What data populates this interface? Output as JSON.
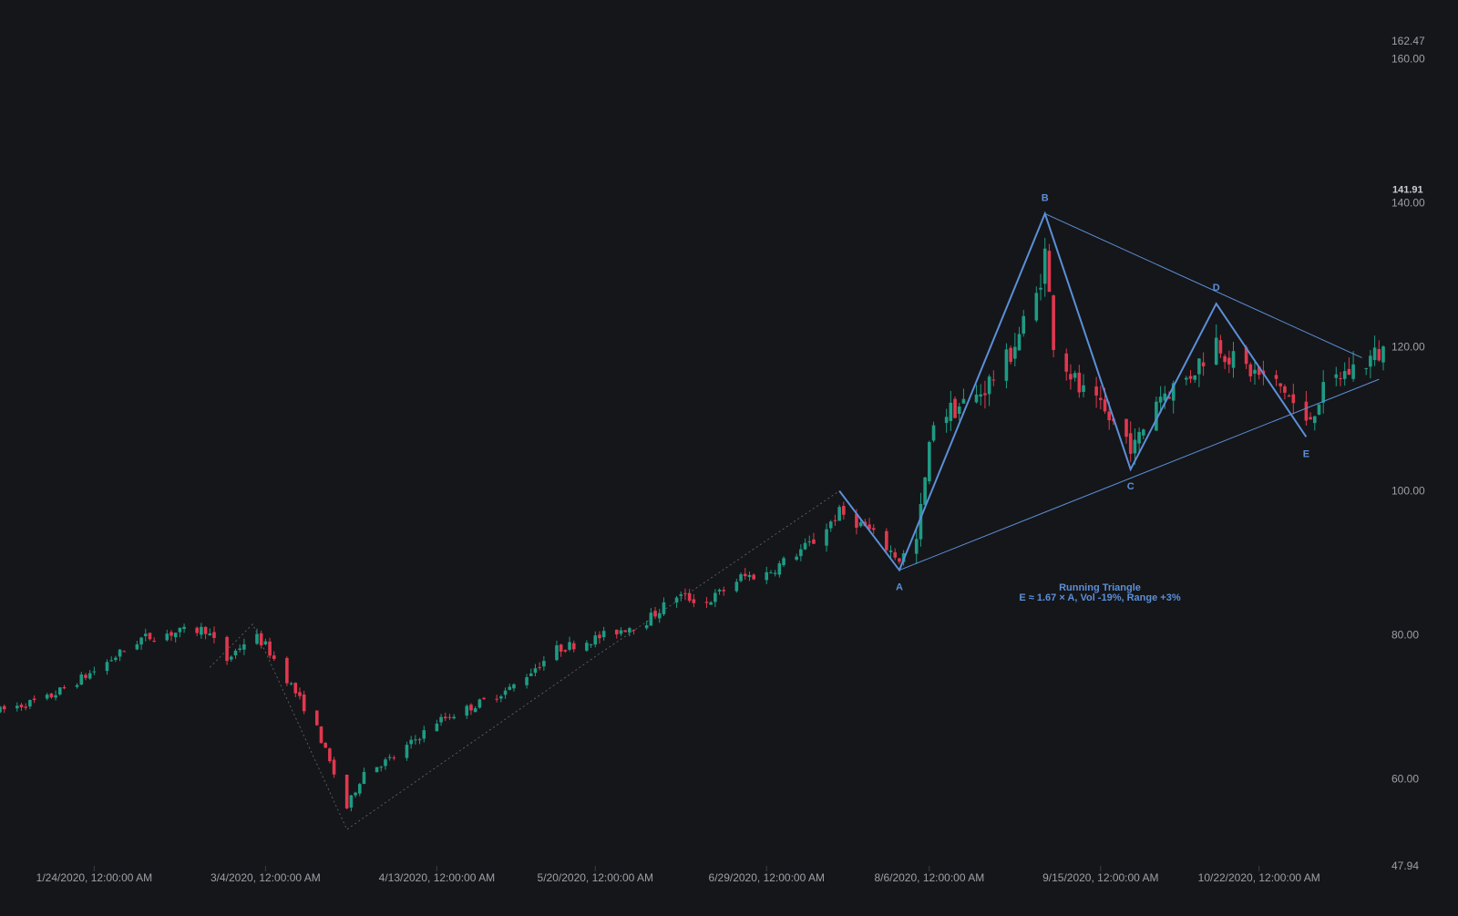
{
  "chart_data": {
    "type": "candlestick",
    "theme": {
      "background": "#151619",
      "up_color": "#1e9b84",
      "down_color": "#e0384f",
      "pattern_color": "#5b8fd9",
      "axis_text": "#9aa0a6",
      "dotted_color": "#7a7f88"
    },
    "y_axis": {
      "range": [
        47.94,
        162.47
      ],
      "ticks": [
        "60.00",
        "80.00",
        "100.00",
        "120.00",
        "140.00",
        "160.00"
      ],
      "range_labels": [
        "162.47",
        "47.94"
      ],
      "last_price": "141.91"
    },
    "x_axis": {
      "range": [
        "2020-01-02",
        "2020-11-20"
      ],
      "ticks": [
        {
          "date": "2020-01-24",
          "label": "1/24/2020, 12:00:00 AM"
        },
        {
          "date": "2020-03-04",
          "label": "3/4/2020, 12:00:00 AM"
        },
        {
          "date": "2020-04-13",
          "label": "4/13/2020, 12:00:00 AM"
        },
        {
          "date": "2020-05-20",
          "label": "5/20/2020, 12:00:00 AM"
        },
        {
          "date": "2020-06-29",
          "label": "6/29/2020, 12:00:00 AM"
        },
        {
          "date": "2020-08-06",
          "label": "8/6/2020, 12:00:00 AM"
        },
        {
          "date": "2020-09-15",
          "label": "9/15/2020, 12:00:00 AM"
        },
        {
          "date": "2020-10-22",
          "label": "10/22/2020, 12:00:00 AM"
        }
      ]
    },
    "price_path": [
      [
        "2020-01-02",
        69.5
      ],
      [
        "2020-01-13",
        71.2
      ],
      [
        "2020-01-24",
        75.0
      ],
      [
        "2020-02-04",
        79.5
      ],
      [
        "2020-02-10",
        80.2
      ],
      [
        "2020-02-19",
        80.8
      ],
      [
        "2020-02-24",
        76.5
      ],
      [
        "2020-03-01",
        80.2
      ],
      [
        "2020-03-04",
        78.5
      ],
      [
        "2020-03-10",
        73.0
      ],
      [
        "2020-03-16",
        67.0
      ],
      [
        "2020-03-23",
        56.0
      ],
      [
        "2020-03-27",
        61.0
      ],
      [
        "2020-04-03",
        63.0
      ],
      [
        "2020-04-13",
        68.0
      ],
      [
        "2020-04-21",
        70.0
      ],
      [
        "2020-04-30",
        72.5
      ],
      [
        "2020-05-11",
        78.0
      ],
      [
        "2020-05-20",
        79.5
      ],
      [
        "2020-06-01",
        82.0
      ],
      [
        "2020-06-08",
        85.5
      ],
      [
        "2020-06-15",
        84.5
      ],
      [
        "2020-06-23",
        88.0
      ],
      [
        "2020-06-29",
        88.5
      ],
      [
        "2020-07-10",
        93.0
      ],
      [
        "2020-07-16",
        97.0
      ],
      [
        "2020-07-22",
        95.0
      ],
      [
        "2020-07-30",
        90.5
      ],
      [
        "2020-08-03",
        93.0
      ],
      [
        "2020-08-07",
        110.0
      ],
      [
        "2020-08-17",
        113.0
      ],
      [
        "2020-08-24",
        118.0
      ],
      [
        "2020-08-31",
        127.0
      ],
      [
        "2020-09-02",
        133.0
      ],
      [
        "2020-09-04",
        121.0
      ],
      [
        "2020-09-10",
        114.0
      ],
      [
        "2020-09-17",
        110.0
      ],
      [
        "2020-09-23",
        106.0
      ],
      [
        "2020-09-28",
        113.0
      ],
      [
        "2020-10-05",
        115.5
      ],
      [
        "2020-10-12",
        121.0
      ],
      [
        "2020-10-16",
        118.0
      ],
      [
        "2020-10-22",
        116.0
      ],
      [
        "2020-10-28",
        114.0
      ],
      [
        "2020-11-02",
        109.0
      ],
      [
        "2020-11-05",
        113.0
      ],
      [
        "2020-11-10",
        116.0
      ],
      [
        "2020-11-16",
        118.0
      ],
      [
        "2020-11-20",
        119.5
      ]
    ],
    "pattern": {
      "name": "Running Triangle",
      "description": "E ≈ 1.67 × A, Vol -19%, Range +3%",
      "points": [
        {
          "label": "",
          "date": "2020-07-16",
          "price": 100.0
        },
        {
          "label": "A",
          "date": "2020-07-30",
          "price": 89.0
        },
        {
          "label": "B",
          "date": "2020-09-02",
          "price": 138.5
        },
        {
          "label": "C",
          "date": "2020-09-22",
          "price": 103.0
        },
        {
          "label": "D",
          "date": "2020-10-12",
          "price": 126.0
        },
        {
          "label": "E",
          "date": "2020-11-02",
          "price": 107.5
        }
      ],
      "upper_trendline": [
        [
          "2020-09-02",
          138.5
        ],
        [
          "2020-11-15",
          118.5
        ]
      ],
      "lower_trendline": [
        [
          "2020-07-30",
          89.0
        ],
        [
          "2020-11-19",
          115.5
        ]
      ]
    },
    "swing_path": [
      [
        "2020-02-20",
        75.5
      ],
      [
        "2020-03-01",
        81.5
      ],
      [
        "2020-03-23",
        53.0
      ],
      [
        "2020-05-20",
        77.0
      ],
      [
        "2020-07-16",
        100.0
      ]
    ]
  }
}
